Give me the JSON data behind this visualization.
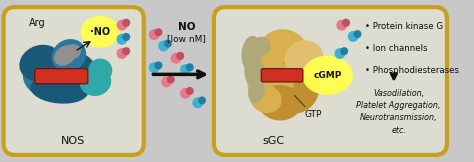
{
  "fig_bg": "#c8c8c8",
  "nos_box_fc": "#dcdcd0",
  "sgc_box_fc": "#dcdcd0",
  "border_gold": "#c8a020",
  "nos_blue1": "#2878a0",
  "nos_blue2": "#1a5878",
  "nos_blue3": "#3090b0",
  "nos_teal": "#30a8a8",
  "nos_heme": "#d03020",
  "nos_gray": "#909090",
  "sgc_tan1": "#d8b050",
  "sgc_tan2": "#c09030",
  "sgc_tan3": "#e0c070",
  "sgc_gray": "#b0a878",
  "sgc_heme": "#d03020",
  "no_glow": "#ffff50",
  "cgmp_glow": "#ffff50",
  "dot_pink_outer": "#e87888",
  "dot_pink_inner": "#c05060",
  "dot_blue_outer": "#40b0d0",
  "dot_blue_inner": "#2080a0",
  "arrow_color": "#101010",
  "text_dark": "#101010",
  "nos_label": "NOS",
  "sgc_label": "sGC",
  "arg_label": "Arg",
  "no_label": "·NO",
  "no_above": "NO",
  "no_below": "[low nM]",
  "cgmp_label": "cGMP",
  "gtp_label": "GTP",
  "bullets": [
    "Protein kinase G",
    "Ion channels",
    "Phosphodiesterases"
  ],
  "italics": [
    "Vasodilation,",
    "Platelet Aggregation,",
    "Neurotransmission,",
    "etc."
  ]
}
